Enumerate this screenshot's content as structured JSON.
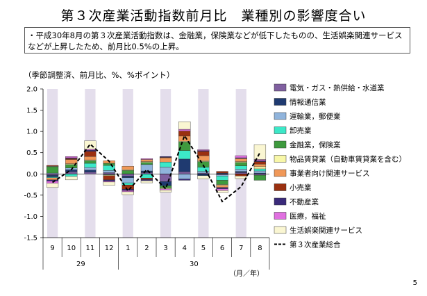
{
  "title": "第３次産業活動指数前月比　業種別の影響度合い",
  "note": "・平成30年8月の第３次産業活動指数は、金融業，保険業などが低下したものの、生活娯楽関連サービスなどが上昇したため、前月比0.5%の上昇。",
  "unit_label": "（季節調整済、前月比、%、%ポイント）",
  "axis_unit": "（月／年）",
  "page_number": "5",
  "chart_data": {
    "type": "bar",
    "stacked": true,
    "ylim": [
      -1.5,
      2.0
    ],
    "yticks": [
      "2.0",
      "1.5",
      "1.0",
      "0.5",
      "0.0",
      "-0.5",
      "-1.0",
      "-1.5"
    ],
    "categories": [
      "9",
      "10",
      "11",
      "12",
      "1",
      "2",
      "3",
      "4",
      "5",
      "6",
      "7",
      "8"
    ],
    "year_groups": [
      {
        "label": "29",
        "span": 4
      },
      {
        "label": "30",
        "span": 8
      }
    ],
    "shaded_categories": [
      "9",
      "11",
      "1",
      "3",
      "5",
      "7"
    ],
    "colors": {
      "shade": "#e4deec",
      "line": "#000000",
      "grid": "#000000"
    },
    "series": [
      {
        "name": "電気・ガス・熱供給・水道業",
        "color": "#8060a0",
        "values": [
          -0.03,
          0.05,
          0.04,
          0.03,
          -0.05,
          0.03,
          -0.18,
          0.05,
          0.02,
          -0.02,
          0.03,
          -0.03
        ]
      },
      {
        "name": "情報通信業",
        "color": "#1f3a70",
        "values": [
          -0.04,
          0.05,
          0.05,
          -0.02,
          -0.04,
          0.04,
          -0.1,
          0.3,
          -0.04,
          0.02,
          0.03,
          0.02
        ]
      },
      {
        "name": "運輸業，郵便業",
        "color": "#90b4dc",
        "values": [
          0.02,
          0.04,
          0.06,
          0.05,
          -0.12,
          0.15,
          0.16,
          -0.12,
          0.04,
          -0.03,
          0.05,
          0.05
        ]
      },
      {
        "name": "卸売業",
        "color": "#3ce8c8",
        "values": [
          -0.02,
          -0.06,
          0.1,
          0.12,
          -0.05,
          -0.1,
          0.12,
          0.2,
          0.1,
          -0.1,
          0.08,
          0.05
        ]
      },
      {
        "name": "金融業，保険業",
        "color": "#3e9a3e",
        "values": [
          0.15,
          0.08,
          0.06,
          0.05,
          0.08,
          0.05,
          -0.05,
          0.2,
          0.13,
          -0.1,
          0.08,
          -0.12
        ]
      },
      {
        "name": "物品賃貸業（自動車賃貸業を含む）",
        "color": "#f8f7a8",
        "values": [
          0.01,
          0.02,
          0.02,
          -0.02,
          0.02,
          0.02,
          -0.02,
          0.02,
          0.02,
          -0.02,
          0.02,
          0.05
        ]
      },
      {
        "name": "事業者向け関連サービス",
        "color": "#f09858",
        "values": [
          -0.05,
          0.1,
          0.08,
          0.06,
          0.08,
          0.05,
          0.1,
          0.12,
          0.12,
          -0.05,
          0.07,
          0.06
        ]
      },
      {
        "name": "小売業",
        "color": "#9a3010",
        "values": [
          0.02,
          0.02,
          0.12,
          -0.1,
          -0.1,
          -0.03,
          0.01,
          0.12,
          0.1,
          0.04,
          -0.05,
          0.06
        ]
      },
      {
        "name": "不動産業",
        "color": "#3a2a7a",
        "values": [
          -0.03,
          0.02,
          0.03,
          -0.03,
          -0.03,
          -0.03,
          0.02,
          -0.03,
          0.02,
          -0.03,
          0.02,
          0.02
        ]
      },
      {
        "name": "医療，福祉",
        "color": "#e070e0",
        "values": [
          -0.05,
          0.03,
          0.02,
          -0.02,
          -0.03,
          0.02,
          -0.03,
          0.04,
          0.02,
          -0.04,
          0.05,
          0.03
        ]
      },
      {
        "name": "生活娯楽関連サービス",
        "color": "#faf6d2",
        "values": [
          -0.1,
          -0.08,
          0.2,
          -0.08,
          -0.07,
          -0.05,
          -0.05,
          0.18,
          -0.08,
          -0.05,
          -0.06,
          0.35
        ]
      },
      {
        "name": "第３次産業総合",
        "type": "line",
        "color": "#000000",
        "values": [
          -0.2,
          0.1,
          0.7,
          0.3,
          -0.4,
          0.1,
          -0.35,
          0.9,
          0.2,
          -0.65,
          -0.3,
          0.5
        ]
      }
    ]
  }
}
